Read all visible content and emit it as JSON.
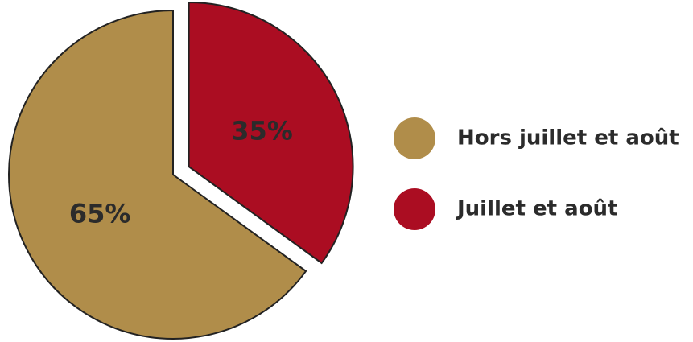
{
  "chart_data": {
    "type": "pie",
    "categories": [
      "Hors juillet et août",
      "Juillet et août"
    ],
    "values": [
      65,
      35
    ],
    "value_labels": [
      "65%",
      "35%"
    ],
    "colors": [
      "#b08d4a",
      "#ab0d22"
    ],
    "legend": "right"
  }
}
